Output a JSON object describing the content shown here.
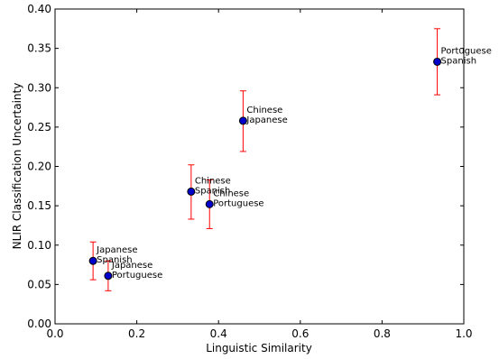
{
  "chart_data": {
    "type": "scatter",
    "xlabel": "Linguistic Similarity",
    "ylabel": "NLIR Classification Uncertainty",
    "xlim": [
      0.0,
      1.0
    ],
    "ylim": [
      0.0,
      0.4
    ],
    "x_ticks": [
      "0.0",
      "0.2",
      "0.4",
      "0.6",
      "0.8",
      "1.0"
    ],
    "y_ticks": [
      "0.00",
      "0.05",
      "0.10",
      "0.15",
      "0.20",
      "0.25",
      "0.30",
      "0.35",
      "0.40"
    ],
    "grid": false,
    "colors": {
      "marker_fill": "#0000cc",
      "marker_edge": "#000000",
      "errorbar": "#ff0000"
    },
    "points": [
      {
        "labels": [
          "Japanese",
          "Spanish"
        ],
        "x": 0.093,
        "y": 0.08,
        "err_low": 0.056,
        "err_high": 0.104
      },
      {
        "labels": [
          "Japanese",
          "Portuguese"
        ],
        "x": 0.13,
        "y": 0.061,
        "err_low": 0.042,
        "err_high": 0.08
      },
      {
        "labels": [
          "Chinese",
          "Spanish"
        ],
        "x": 0.333,
        "y": 0.168,
        "err_low": 0.133,
        "err_high": 0.202
      },
      {
        "labels": [
          "Chinese",
          "Portuguese"
        ],
        "x": 0.378,
        "y": 0.152,
        "err_low": 0.121,
        "err_high": 0.183
      },
      {
        "labels": [
          "Chinese",
          "Japanese"
        ],
        "x": 0.46,
        "y": 0.258,
        "err_low": 0.219,
        "err_high": 0.296
      },
      {
        "labels": [
          "Portuguese",
          "Spanish"
        ],
        "x": 0.935,
        "y": 0.333,
        "err_low": 0.291,
        "err_high": 0.375
      }
    ]
  }
}
